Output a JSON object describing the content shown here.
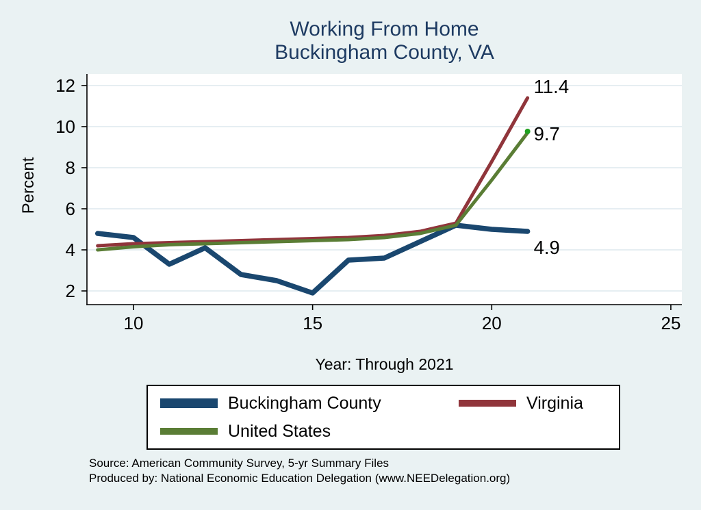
{
  "page": {
    "background_color": "#eaf2f3",
    "title_color": "#1e3b62",
    "plot_background": "#ffffff",
    "gridline_color": "#dde8ee",
    "axis_color": "#000000"
  },
  "chart_data": {
    "type": "line",
    "title": "Working From Home",
    "subtitle": "Buckingham County, VA",
    "xlabel": "Year: Through 2021",
    "ylabel": "Percent",
    "x": [
      9,
      10,
      11,
      12,
      13,
      14,
      15,
      16,
      17,
      18,
      19,
      20,
      21
    ],
    "x_ticks": [
      10,
      15,
      20,
      25
    ],
    "y_ticks": [
      2,
      4,
      6,
      8,
      10,
      12
    ],
    "xlim": [
      8.7,
      25.3
    ],
    "ylim": [
      1.3,
      12.7
    ],
    "grid": "horizontal",
    "legend_position": "bottom-box",
    "series": [
      {
        "name": "Buckingham County",
        "color": "#1a476f",
        "line_width": 7.5,
        "values": [
          4.8,
          4.6,
          3.3,
          4.1,
          2.8,
          2.5,
          1.9,
          3.5,
          3.6,
          4.4,
          5.2,
          5.0,
          4.9
        ],
        "end_label": "4.9",
        "end_label_dy": 24
      },
      {
        "name": "Virginia",
        "color": "#90353b",
        "line_width": 5,
        "values": [
          4.2,
          4.3,
          4.35,
          4.4,
          4.45,
          4.5,
          4.55,
          4.6,
          4.7,
          4.9,
          5.3,
          8.3,
          11.4
        ],
        "end_label": "11.4",
        "end_label_dy": -16
      },
      {
        "name": "United States",
        "color": "#5a7d35",
        "line_width": 5,
        "values": [
          4.0,
          4.15,
          4.25,
          4.3,
          4.35,
          4.4,
          4.45,
          4.5,
          4.6,
          4.8,
          5.2,
          7.4,
          9.7
        ],
        "end_label": "9.7",
        "end_label_dy": 2,
        "end_marker_color": "#1fa11f"
      }
    ]
  },
  "notes": {
    "source": "Source: American Community Survey, 5-yr Summary Files",
    "produced_by": "Produced by: National Economic Education Delegation (www.NEEDelegation.org)"
  }
}
